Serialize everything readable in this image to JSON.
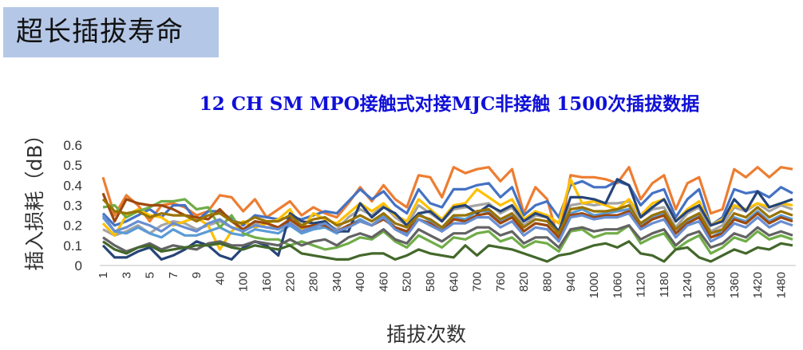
{
  "slide": {
    "title": "超长插拔寿命"
  },
  "chart_data": {
    "type": "line",
    "title": "12 CH SM MPO接触式对接MJC非接触 1500次插拔数据",
    "xlabel": "插拔次数",
    "ylabel": "插入损耗（dB）",
    "ylim": [
      0,
      0.6
    ],
    "yticks": [
      "0",
      "0.1",
      "0.2",
      "0.3",
      "0.4",
      "0.5",
      "0.6"
    ],
    "grid": false,
    "legend": "none",
    "x": [
      1,
      2,
      3,
      4,
      5,
      6,
      7,
      8,
      9,
      10,
      40,
      70,
      100,
      130,
      160,
      190,
      220,
      250,
      280,
      310,
      340,
      370,
      400,
      430,
      460,
      490,
      520,
      550,
      580,
      610,
      640,
      670,
      700,
      730,
      760,
      790,
      820,
      850,
      880,
      910,
      940,
      970,
      1000,
      1030,
      1060,
      1090,
      1120,
      1150,
      1180,
      1210,
      1240,
      1270,
      1300,
      1330,
      1360,
      1390,
      1420,
      1450,
      1480,
      1500
    ],
    "x_tick_labels": [
      "1",
      "3",
      "5",
      "7",
      "9",
      "40",
      "100",
      "160",
      "220",
      "280",
      "340",
      "400",
      "460",
      "520",
      "580",
      "640",
      "700",
      "760",
      "820",
      "880",
      "940",
      "1000",
      "1060",
      "1120",
      "1180",
      "1240",
      "1300",
      "1360",
      "1420",
      "1480"
    ],
    "series": [
      {
        "color": "#ed7d31",
        "values": [
          0.44,
          0.25,
          0.35,
          0.3,
          0.22,
          0.3,
          0.31,
          0.29,
          0.25,
          0.27,
          0.35,
          0.34,
          0.27,
          0.33,
          0.24,
          0.28,
          0.32,
          0.25,
          0.29,
          0.26,
          0.24,
          0.31,
          0.39,
          0.32,
          0.4,
          0.33,
          0.29,
          0.45,
          0.44,
          0.34,
          0.49,
          0.46,
          0.48,
          0.49,
          0.42,
          0.48,
          0.26,
          0.39,
          0.33,
          0.12,
          0.45,
          0.44,
          0.44,
          0.43,
          0.41,
          0.49,
          0.33,
          0.41,
          0.45,
          0.28,
          0.41,
          0.44,
          0.26,
          0.28,
          0.48,
          0.44,
          0.49,
          0.44,
          0.49,
          0.48
        ]
      },
      {
        "color": "#4472c4",
        "values": [
          0.26,
          0.2,
          0.22,
          0.25,
          0.28,
          0.24,
          0.3,
          0.3,
          0.22,
          0.27,
          0.27,
          0.23,
          0.2,
          0.25,
          0.24,
          0.23,
          0.24,
          0.23,
          0.25,
          0.27,
          0.26,
          0.32,
          0.38,
          0.33,
          0.37,
          0.3,
          0.26,
          0.38,
          0.31,
          0.29,
          0.38,
          0.38,
          0.4,
          0.41,
          0.34,
          0.39,
          0.25,
          0.3,
          0.32,
          0.24,
          0.4,
          0.42,
          0.39,
          0.39,
          0.42,
          0.4,
          0.3,
          0.36,
          0.38,
          0.24,
          0.33,
          0.38,
          0.2,
          0.24,
          0.38,
          0.36,
          0.37,
          0.34,
          0.39,
          0.36
        ]
      },
      {
        "color": "#a5a5a5",
        "values": [
          0.18,
          0.15,
          0.17,
          0.2,
          0.16,
          0.2,
          0.22,
          0.21,
          0.18,
          0.2,
          0.22,
          0.19,
          0.17,
          0.21,
          0.19,
          0.19,
          0.22,
          0.18,
          0.2,
          0.21,
          0.18,
          0.24,
          0.28,
          0.25,
          0.3,
          0.24,
          0.2,
          0.3,
          0.26,
          0.22,
          0.28,
          0.29,
          0.3,
          0.31,
          0.26,
          0.29,
          0.2,
          0.25,
          0.24,
          0.16,
          0.3,
          0.31,
          0.3,
          0.31,
          0.31,
          0.32,
          0.24,
          0.28,
          0.29,
          0.19,
          0.26,
          0.29,
          0.17,
          0.2,
          0.29,
          0.27,
          0.31,
          0.27,
          0.3,
          0.28
        ]
      },
      {
        "color": "#ffc000",
        "values": [
          0.21,
          0.15,
          0.25,
          0.28,
          0.25,
          0.24,
          0.2,
          0.22,
          0.24,
          0.2,
          0.08,
          0.17,
          0.22,
          0.19,
          0.21,
          0.23,
          0.28,
          0.18,
          0.26,
          0.23,
          0.21,
          0.26,
          0.31,
          0.27,
          0.31,
          0.25,
          0.22,
          0.33,
          0.28,
          0.23,
          0.3,
          0.31,
          0.38,
          0.34,
          0.3,
          0.33,
          0.23,
          0.27,
          0.25,
          0.21,
          0.43,
          0.31,
          0.32,
          0.3,
          0.28,
          0.33,
          0.25,
          0.31,
          0.33,
          0.22,
          0.28,
          0.32,
          0.2,
          0.23,
          0.3,
          0.28,
          0.31,
          0.29,
          0.31,
          0.3
        ]
      },
      {
        "color": "#5b9bd5",
        "values": [
          0.24,
          0.17,
          0.16,
          0.19,
          0.16,
          0.14,
          0.18,
          0.15,
          0.15,
          0.17,
          0.19,
          0.16,
          0.15,
          0.18,
          0.17,
          0.16,
          0.2,
          0.16,
          0.18,
          0.19,
          0.16,
          0.2,
          0.23,
          0.2,
          0.25,
          0.19,
          0.16,
          0.26,
          0.22,
          0.18,
          0.24,
          0.23,
          0.27,
          0.27,
          0.22,
          0.25,
          0.17,
          0.21,
          0.2,
          0.14,
          0.26,
          0.28,
          0.25,
          0.26,
          0.27,
          0.28,
          0.2,
          0.24,
          0.26,
          0.16,
          0.22,
          0.25,
          0.14,
          0.17,
          0.24,
          0.22,
          0.27,
          0.22,
          0.25,
          0.23
        ]
      },
      {
        "color": "#70ad47",
        "values": [
          0.29,
          0.3,
          0.24,
          0.27,
          0.29,
          0.32,
          0.32,
          0.33,
          0.28,
          0.29,
          0.19,
          0.25,
          0.16,
          0.14,
          0.13,
          0.13,
          0.1,
          0.12,
          0.1,
          0.08,
          0.09,
          0.11,
          0.14,
          0.13,
          0.17,
          0.12,
          0.09,
          0.15,
          0.12,
          0.09,
          0.14,
          0.13,
          0.16,
          0.17,
          0.12,
          0.14,
          0.09,
          0.12,
          0.11,
          0.07,
          0.17,
          0.18,
          0.14,
          0.16,
          0.16,
          0.2,
          0.11,
          0.14,
          0.16,
          0.08,
          0.12,
          0.15,
          0.06,
          0.09,
          0.14,
          0.12,
          0.17,
          0.13,
          0.15,
          0.13
        ]
      },
      {
        "color": "#264478",
        "values": [
          0.1,
          0.04,
          0.04,
          0.07,
          0.09,
          0.03,
          0.05,
          0.08,
          0.12,
          0.1,
          0.05,
          0.03,
          0.09,
          0.12,
          0.1,
          0.05,
          0.26,
          0.22,
          0.21,
          0.22,
          0.17,
          0.17,
          0.31,
          0.24,
          0.29,
          0.26,
          0.2,
          0.26,
          0.27,
          0.22,
          0.29,
          0.3,
          0.26,
          0.3,
          0.27,
          0.3,
          0.22,
          0.26,
          0.24,
          0.17,
          0.34,
          0.34,
          0.33,
          0.31,
          0.43,
          0.4,
          0.24,
          0.29,
          0.33,
          0.22,
          0.27,
          0.3,
          0.2,
          0.22,
          0.33,
          0.27,
          0.37,
          0.29,
          0.31,
          0.33
        ]
      },
      {
        "color": "#9e480e",
        "values": [
          0.36,
          0.22,
          0.33,
          0.31,
          0.3,
          0.3,
          0.28,
          0.25,
          0.24,
          0.23,
          0.28,
          0.22,
          0.18,
          0.22,
          0.21,
          0.19,
          0.23,
          0.19,
          0.2,
          0.2,
          0.17,
          0.2,
          0.22,
          0.2,
          0.23,
          0.19,
          0.17,
          0.23,
          0.21,
          0.17,
          0.23,
          0.22,
          0.25,
          0.26,
          0.21,
          0.24,
          0.17,
          0.21,
          0.2,
          0.14,
          0.25,
          0.26,
          0.24,
          0.25,
          0.25,
          0.27,
          0.19,
          0.23,
          0.25,
          0.16,
          0.21,
          0.24,
          0.14,
          0.16,
          0.23,
          0.21,
          0.26,
          0.21,
          0.24,
          0.22
        ]
      },
      {
        "color": "#636363",
        "values": [
          0.14,
          0.1,
          0.07,
          0.09,
          0.11,
          0.08,
          0.1,
          0.09,
          0.08,
          0.11,
          0.12,
          0.1,
          0.1,
          0.12,
          0.11,
          0.1,
          0.13,
          0.1,
          0.12,
          0.13,
          0.1,
          0.14,
          0.16,
          0.14,
          0.18,
          0.13,
          0.11,
          0.18,
          0.15,
          0.12,
          0.16,
          0.16,
          0.19,
          0.19,
          0.15,
          0.17,
          0.11,
          0.14,
          0.14,
          0.09,
          0.18,
          0.19,
          0.17,
          0.18,
          0.18,
          0.2,
          0.13,
          0.16,
          0.18,
          0.1,
          0.15,
          0.17,
          0.09,
          0.11,
          0.16,
          0.14,
          0.19,
          0.15,
          0.17,
          0.15
        ]
      },
      {
        "color": "#997300",
        "values": [
          0.33,
          0.27,
          0.26,
          0.27,
          0.24,
          0.26,
          0.25,
          0.25,
          0.22,
          0.25,
          0.26,
          0.22,
          0.21,
          0.24,
          0.22,
          0.22,
          0.25,
          0.2,
          0.23,
          0.24,
          0.2,
          0.22,
          0.25,
          0.22,
          0.26,
          0.21,
          0.19,
          0.25,
          0.23,
          0.19,
          0.25,
          0.25,
          0.27,
          0.28,
          0.23,
          0.26,
          0.19,
          0.23,
          0.22,
          0.16,
          0.28,
          0.29,
          0.27,
          0.27,
          0.28,
          0.3,
          0.21,
          0.25,
          0.27,
          0.18,
          0.23,
          0.26,
          0.16,
          0.18,
          0.26,
          0.24,
          0.29,
          0.24,
          0.27,
          0.25
        ]
      },
      {
        "color": "#43682b",
        "values": [
          0.12,
          0.08,
          0.06,
          0.09,
          0.1,
          0.07,
          0.08,
          0.09,
          0.1,
          0.1,
          0.11,
          0.09,
          0.08,
          0.1,
          0.09,
          0.08,
          0.1,
          0.06,
          0.05,
          0.04,
          0.03,
          0.03,
          0.05,
          0.06,
          0.06,
          0.03,
          0.05,
          0.08,
          0.06,
          0.05,
          0.04,
          0.1,
          0.05,
          0.1,
          0.09,
          0.08,
          0.06,
          0.04,
          0.02,
          0.05,
          0.06,
          0.08,
          0.1,
          0.11,
          0.09,
          0.12,
          0.06,
          0.05,
          0.02,
          0.08,
          0.09,
          0.04,
          0.02,
          0.05,
          0.08,
          0.06,
          0.09,
          0.08,
          0.11,
          0.1
        ]
      },
      {
        "color": "#698ed0",
        "values": [
          0.25,
          0.17,
          0.19,
          0.22,
          0.2,
          0.17,
          0.21,
          0.19,
          0.17,
          0.21,
          0.23,
          0.19,
          0.17,
          0.2,
          0.19,
          0.18,
          0.21,
          0.17,
          0.19,
          0.21,
          0.17,
          0.19,
          0.22,
          0.2,
          0.24,
          0.18,
          0.15,
          0.23,
          0.2,
          0.17,
          0.21,
          0.21,
          0.24,
          0.24,
          0.19,
          0.22,
          0.15,
          0.19,
          0.18,
          0.12,
          0.24,
          0.25,
          0.23,
          0.24,
          0.24,
          0.26,
          0.18,
          0.21,
          0.23,
          0.14,
          0.2,
          0.22,
          0.12,
          0.15,
          0.21,
          0.19,
          0.24,
          0.19,
          0.22,
          0.2
        ]
      }
    ]
  }
}
